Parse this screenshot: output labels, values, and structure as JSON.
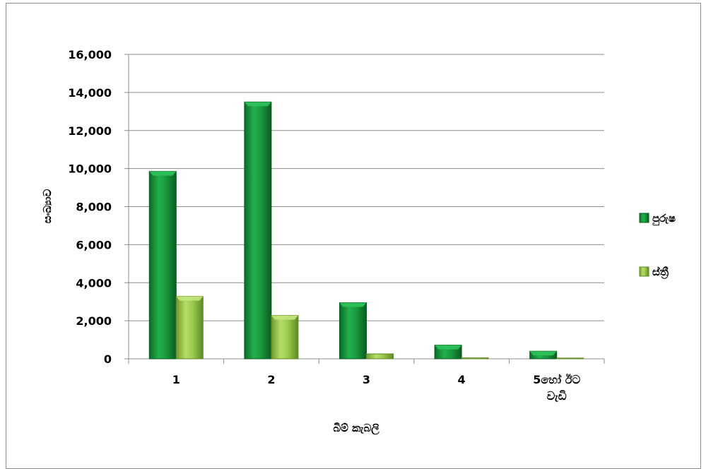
{
  "chart_data": {
    "type": "bar",
    "title": "",
    "xlabel": "බිම් කැබලි",
    "ylabel": "සංඛ්‍යාව",
    "categories": [
      "1",
      "2",
      "3",
      "4",
      "5හෝ ඊට වැඩි"
    ],
    "category_label_lines": [
      [
        "1"
      ],
      [
        "2"
      ],
      [
        "3"
      ],
      [
        "4"
      ],
      [
        "5හෝ ඊට",
        "වැඩි"
      ]
    ],
    "series": [
      {
        "name": "පුරුෂ",
        "values": [
          9850,
          13500,
          2950,
          720,
          400
        ],
        "color": "#1a9c3e"
      },
      {
        "name": "ස්ත්‍රී",
        "values": [
          3280,
          2280,
          260,
          50,
          40
        ],
        "color": "#9ccc4e"
      }
    ],
    "ylim": [
      0,
      16000
    ],
    "yticks": [
      "0",
      "2,000",
      "4,000",
      "6,000",
      "8,000",
      "10,000",
      "12,000",
      "14,000",
      "16,000"
    ],
    "grid": true,
    "legend_position": "right"
  }
}
